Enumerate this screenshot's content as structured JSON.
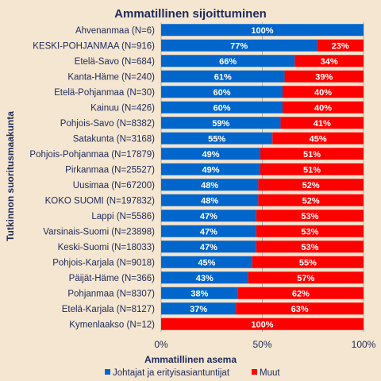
{
  "chart_data": {
    "type": "bar",
    "orientation": "horizontal",
    "stacked": "percent",
    "title": "Ammatillinen sijoittuminen",
    "xlabel": "Ammatillinen asema",
    "ylabel": "Tutkinnon suoritusmaakunta",
    "xlim": [
      0,
      100
    ],
    "x_ticks": [
      "0%",
      "50%",
      "100%"
    ],
    "grid": true,
    "legend_position": "bottom",
    "categories": [
      "Ahvenanmaa (N=6)",
      "KESKI-POHJANMAA (N=916)",
      "Etelä-Savo (N=684)",
      "Kanta-Häme (N=240)",
      "Etelä-Pohjanmaa (N=30)",
      "Kainuu (N=426)",
      "Pohjois-Savo (N=8382)",
      "Satakunta (N=3168)",
      "Pohjois-Pohjanmaa (N=17879)",
      "Pirkanmaa (N=25527)",
      "Uusimaa (N=67200)",
      "KOKO SUOMI (N=197832)",
      "Lappi (N=5586)",
      "Varsinais-Suomi (N=23898)",
      "Keski-Suomi (N=18033)",
      "Pohjois-Karjala (N=9018)",
      "Päijät-Häme (N=366)",
      "Pohjanmaa (N=8307)",
      "Etelä-Karjala (N=8127)",
      "Kymenlaakso (N=12)"
    ],
    "series": [
      {
        "name": "Johtajat ja erityisasiantuntijat",
        "color": "#0066cc",
        "values": [
          100,
          77,
          66,
          61,
          60,
          60,
          59,
          55,
          49,
          49,
          48,
          48,
          47,
          47,
          47,
          45,
          43,
          38,
          37,
          0
        ]
      },
      {
        "name": "Muut",
        "color": "#ff0000",
        "values": [
          0,
          23,
          34,
          39,
          40,
          40,
          41,
          45,
          51,
          51,
          52,
          52,
          53,
          53,
          53,
          55,
          57,
          62,
          63,
          100
        ]
      }
    ],
    "value_label_suffix": "%"
  }
}
